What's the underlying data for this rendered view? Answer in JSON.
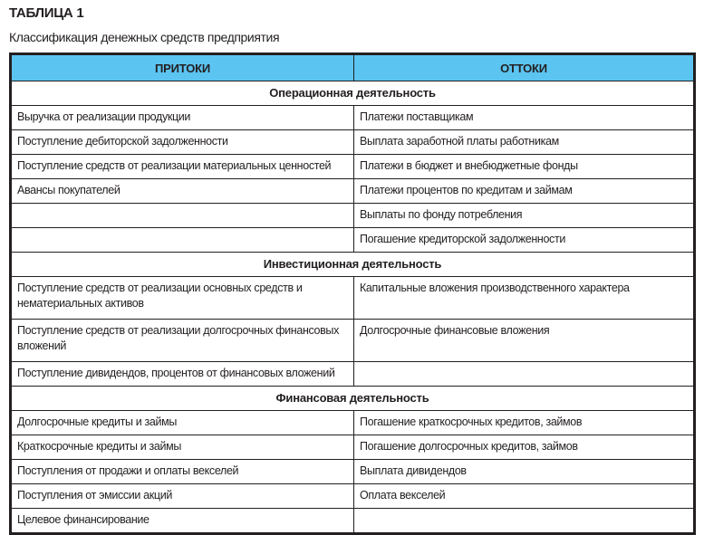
{
  "title": "ТАБЛИЦА 1",
  "subtitle": "Классификация денежных средств предприятия",
  "header_color": "#5bc4f1",
  "columns": [
    "ПРИТОКИ",
    "ОТТОКИ"
  ],
  "sections": [
    {
      "name": "Операционная деятельность",
      "rows": [
        [
          "Выручка от реализации продукции",
          "Платежи поставщикам"
        ],
        [
          "Поступление дебиторской задолженности",
          "Выплата заработной платы работникам"
        ],
        [
          "Поступление средств от реализации материальных ценностей",
          "Платежи в бюджет и внебюджетные фонды"
        ],
        [
          "Авансы покупателей",
          "Платежи процентов по кредитам и займам"
        ],
        [
          "",
          "Выплаты по фонду потребления"
        ],
        [
          "",
          "Погашение кредиторской задолженности"
        ]
      ]
    },
    {
      "name": "Инвестиционная деятельность",
      "rows": [
        [
          "Поступление средств от реализации основных средств и нематериальных активов",
          "Капитальные вложения производственного характера"
        ],
        [
          "Поступление средств от реализации долгосрочных финансовых вложений",
          "Долгосрочные финансовые вложения"
        ],
        [
          "Поступление дивидендов, процентов от финансовых вложений",
          ""
        ]
      ]
    },
    {
      "name": "Финансовая деятельность",
      "rows": [
        [
          "Долгосрочные кредиты и займы",
          "Погашение краткосрочных кредитов, займов"
        ],
        [
          "Краткосрочные кредиты и займы",
          "Погашение долгосрочных кредитов, займов"
        ],
        [
          "Поступления от продажи и оплаты векселей",
          "Выплата дивидендов"
        ],
        [
          "Поступления от эмиссии акций",
          "Оплата векселей"
        ],
        [
          "Целевое финансирование",
          ""
        ]
      ]
    }
  ]
}
